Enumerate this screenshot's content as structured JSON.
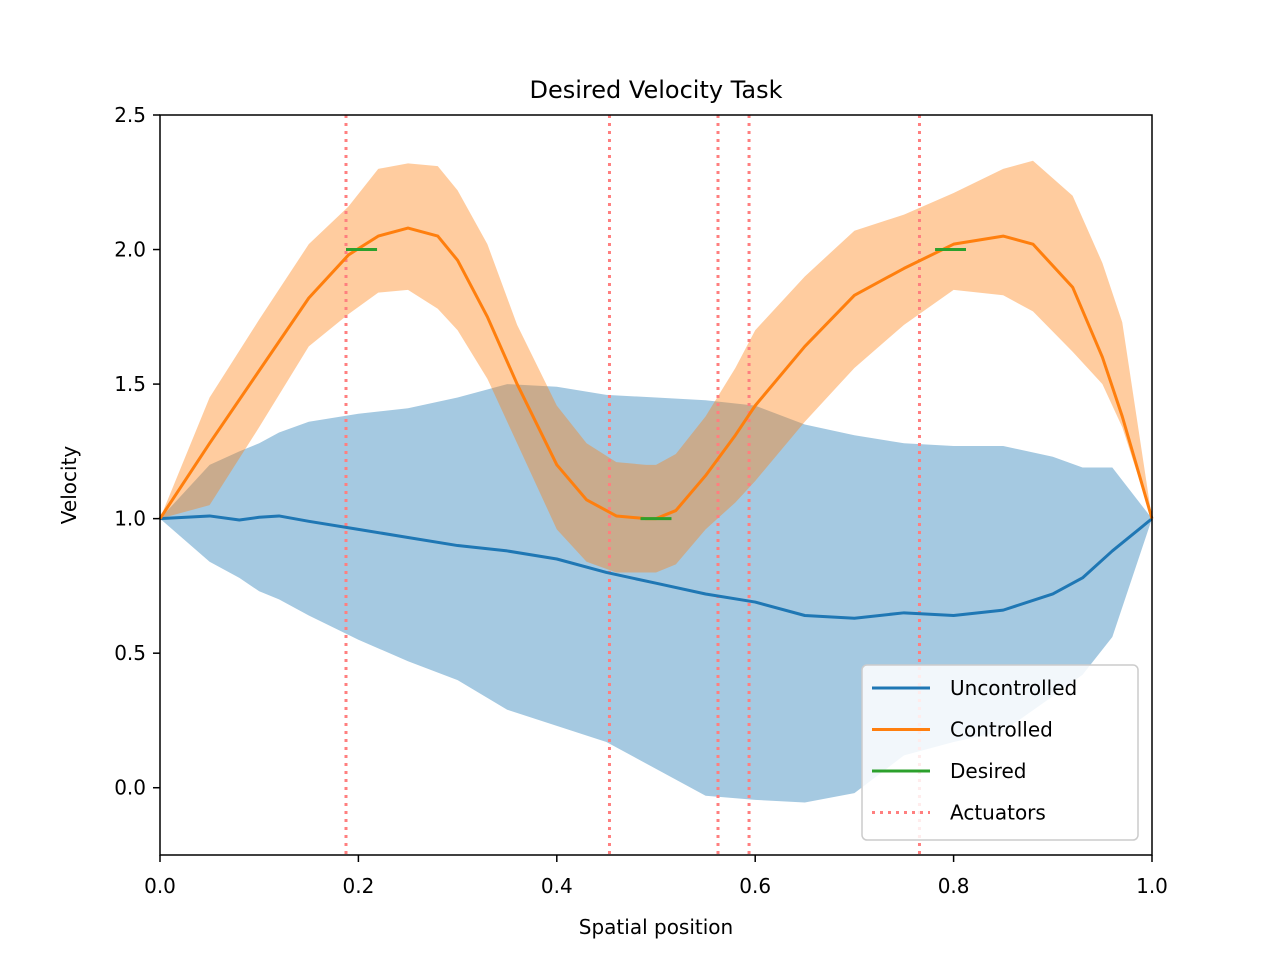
{
  "chart_data": {
    "type": "line",
    "title": "Desired Velocity Task",
    "xlabel": "Spatial position",
    "ylabel": "Velocity",
    "xlim": [
      0.0,
      1.0
    ],
    "ylim": [
      -0.25,
      2.5
    ],
    "xticks": [
      0.0,
      0.2,
      0.4,
      0.6,
      0.8,
      1.0
    ],
    "yticks": [
      0.0,
      0.5,
      1.0,
      1.5,
      2.0,
      2.5
    ],
    "xtick_labels": [
      "0.0",
      "0.2",
      "0.4",
      "0.6",
      "0.8",
      "1.0"
    ],
    "ytick_labels": [
      "0.0",
      "0.5",
      "1.0",
      "1.5",
      "2.0",
      "2.5"
    ],
    "grid": false,
    "legend_position": "lower-right",
    "colors": {
      "uncontrolled": "#1f77b4",
      "controlled": "#ff7f0e",
      "desired": "#2ca02c",
      "actuators": "#ff7f7f"
    },
    "legend": [
      {
        "key": "uncontrolled",
        "label": "Uncontrolled",
        "style": "solid"
      },
      {
        "key": "controlled",
        "label": "Controlled",
        "style": "solid"
      },
      {
        "key": "desired",
        "label": "Desired",
        "style": "solid"
      },
      {
        "key": "actuators",
        "label": "Actuators",
        "style": "dotted"
      }
    ],
    "series": [
      {
        "name": "Uncontrolled",
        "key": "uncontrolled",
        "x": [
          0.0,
          0.05,
          0.08,
          0.1,
          0.12,
          0.15,
          0.2,
          0.25,
          0.3,
          0.35,
          0.4,
          0.45,
          0.5,
          0.55,
          0.6,
          0.65,
          0.7,
          0.75,
          0.8,
          0.85,
          0.9,
          0.93,
          0.96,
          1.0
        ],
        "y": [
          1.0,
          1.01,
          0.995,
          1.005,
          1.01,
          0.99,
          0.96,
          0.93,
          0.9,
          0.88,
          0.85,
          0.8,
          0.76,
          0.72,
          0.69,
          0.64,
          0.63,
          0.65,
          0.64,
          0.66,
          0.72,
          0.78,
          0.88,
          1.0
        ],
        "upper": [
          1.0,
          1.2,
          1.25,
          1.28,
          1.32,
          1.36,
          1.39,
          1.41,
          1.45,
          1.5,
          1.49,
          1.46,
          1.45,
          1.44,
          1.42,
          1.35,
          1.31,
          1.28,
          1.27,
          1.27,
          1.23,
          1.19,
          1.19,
          1.0
        ],
        "lower": [
          1.0,
          0.84,
          0.78,
          0.73,
          0.7,
          0.64,
          0.55,
          0.47,
          0.4,
          0.29,
          0.23,
          0.17,
          0.07,
          -0.03,
          -0.045,
          -0.055,
          -0.02,
          0.12,
          0.17,
          0.21,
          0.34,
          0.42,
          0.56,
          1.0
        ]
      },
      {
        "name": "Controlled",
        "key": "controlled",
        "x": [
          0.0,
          0.05,
          0.1,
          0.15,
          0.19,
          0.22,
          0.25,
          0.28,
          0.3,
          0.33,
          0.36,
          0.4,
          0.43,
          0.46,
          0.49,
          0.5,
          0.52,
          0.55,
          0.58,
          0.6,
          0.65,
          0.7,
          0.75,
          0.8,
          0.85,
          0.88,
          0.92,
          0.95,
          0.97,
          1.0
        ],
        "y": [
          1.0,
          1.28,
          1.55,
          1.82,
          1.98,
          2.05,
          2.08,
          2.05,
          1.96,
          1.75,
          1.5,
          1.2,
          1.07,
          1.01,
          1.0,
          1.0,
          1.03,
          1.16,
          1.31,
          1.42,
          1.64,
          1.83,
          1.93,
          2.02,
          2.05,
          2.02,
          1.86,
          1.6,
          1.38,
          1.0
        ],
        "upper": [
          1.0,
          1.45,
          1.74,
          2.02,
          2.16,
          2.3,
          2.32,
          2.31,
          2.22,
          2.02,
          1.72,
          1.42,
          1.28,
          1.21,
          1.2,
          1.2,
          1.24,
          1.38,
          1.56,
          1.7,
          1.9,
          2.07,
          2.13,
          2.21,
          2.3,
          2.33,
          2.2,
          1.95,
          1.73,
          1.0
        ],
        "lower": [
          1.0,
          1.05,
          1.34,
          1.64,
          1.76,
          1.84,
          1.85,
          1.78,
          1.7,
          1.52,
          1.28,
          0.96,
          0.84,
          0.8,
          0.8,
          0.8,
          0.83,
          0.96,
          1.06,
          1.14,
          1.36,
          1.56,
          1.72,
          1.85,
          1.83,
          1.77,
          1.62,
          1.5,
          1.34,
          1.0
        ]
      }
    ],
    "desired_segments": [
      {
        "x0": 0.1875,
        "x1": 0.2188,
        "y": 2.0
      },
      {
        "x0": 0.4844,
        "x1": 0.5156,
        "y": 1.0
      },
      {
        "x0": 0.7813,
        "x1": 0.8125,
        "y": 2.0
      }
    ],
    "actuators": [
      0.1875,
      0.4531,
      0.5625,
      0.5938,
      0.7656
    ]
  }
}
